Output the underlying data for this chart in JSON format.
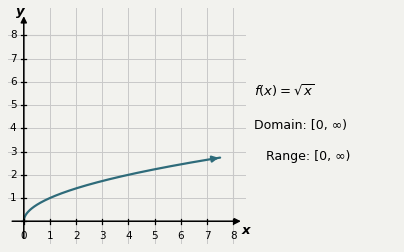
{
  "xlabel": "x",
  "ylabel": "y",
  "xlim": [
    -0.6,
    8.5
  ],
  "ylim": [
    -1.0,
    9.2
  ],
  "x_ticks": [
    0,
    1,
    2,
    3,
    4,
    5,
    6,
    7,
    8
  ],
  "y_ticks": [
    0,
    1,
    2,
    3,
    4,
    5,
    6,
    7,
    8
  ],
  "curve_x_start": 0.0,
  "curve_x_end": 7.5,
  "curve_color": "#2E6B7A",
  "curve_linewidth": 1.6,
  "background_color": "#F2F2EE",
  "grid_color": "#C8C8C8",
  "annotation_text1": "$f(x) = \\sqrt{x}$",
  "annotation_text2": "Domain: [0, ∞)",
  "annotation_text3": "Range: [0, ∞)",
  "annotation_fontsize": 9,
  "tick_fontsize": 7.5
}
